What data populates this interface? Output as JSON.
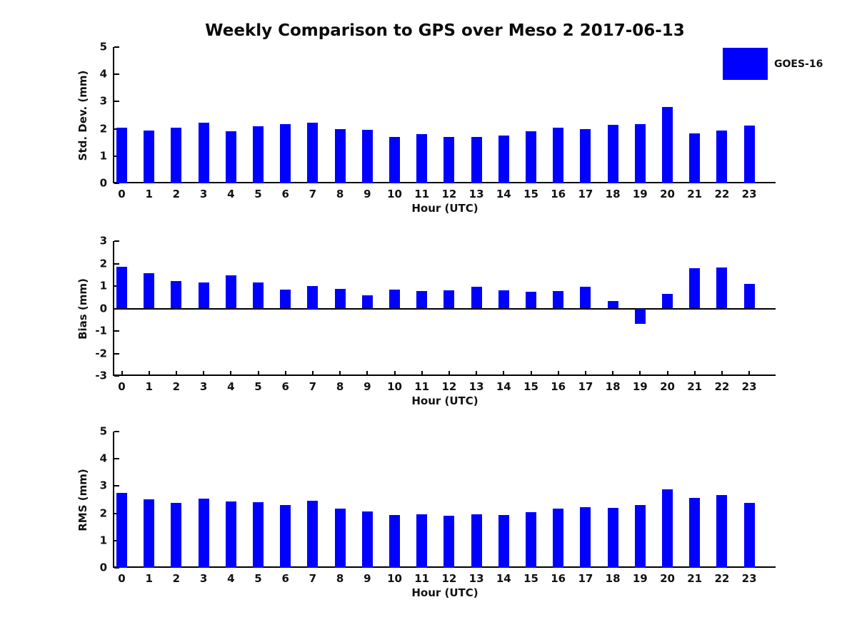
{
  "figure": {
    "title": "Weekly Comparison to GPS over Meso 2 2017-06-13",
    "legend": {
      "label": "GOES-16",
      "color": "#0000ff",
      "position": "upper right"
    },
    "background_color": "#ffffff",
    "axis_color": "#000000",
    "text_color": "#111111"
  },
  "chart_data": [
    {
      "type": "bar",
      "title": "",
      "ylabel": "Std. Dev. (mm)",
      "xlabel": "Hour (UTC)",
      "ylim": [
        0,
        5
      ],
      "yticks": [
        0,
        1,
        2,
        3,
        4,
        5
      ],
      "grid": false,
      "categories": [
        "0",
        "1",
        "2",
        "3",
        "4",
        "5",
        "6",
        "7",
        "8",
        "9",
        "10",
        "11",
        "12",
        "13",
        "14",
        "15",
        "16",
        "17",
        "18",
        "19",
        "20",
        "21",
        "22",
        "23"
      ],
      "series": [
        {
          "name": "GOES-16",
          "color": "#0000ff",
          "values": [
            2.05,
            1.93,
            2.03,
            2.23,
            1.91,
            2.1,
            2.16,
            2.23,
            2.0,
            1.97,
            1.71,
            1.8,
            1.71,
            1.71,
            1.76,
            1.9,
            2.04,
            1.99,
            2.15,
            2.18,
            2.81,
            1.83,
            1.94,
            2.13
          ]
        }
      ]
    },
    {
      "type": "bar",
      "title": "",
      "ylabel": "Bias (mm)",
      "xlabel": "Hour (UTC)",
      "ylim": [
        -3,
        3
      ],
      "yticks": [
        -3,
        -2,
        -1,
        0,
        1,
        2,
        3
      ],
      "grid": false,
      "categories": [
        "0",
        "1",
        "2",
        "3",
        "4",
        "5",
        "6",
        "7",
        "8",
        "9",
        "10",
        "11",
        "12",
        "13",
        "14",
        "15",
        "16",
        "17",
        "18",
        "19",
        "20",
        "21",
        "22",
        "23"
      ],
      "series": [
        {
          "name": "GOES-16",
          "color": "#0000ff",
          "values": [
            1.85,
            1.58,
            1.23,
            1.17,
            1.48,
            1.17,
            0.83,
            1.0,
            0.88,
            0.58,
            0.83,
            0.77,
            0.8,
            0.97,
            0.82,
            0.76,
            0.78,
            0.97,
            0.32,
            -0.68,
            0.65,
            1.8,
            1.83,
            1.1
          ]
        }
      ]
    },
    {
      "type": "bar",
      "title": "",
      "ylabel": "RMS (mm)",
      "xlabel": "Hour (UTC)",
      "ylim": [
        0,
        5
      ],
      "yticks": [
        0,
        1,
        2,
        3,
        4,
        5
      ],
      "grid": false,
      "categories": [
        "0",
        "1",
        "2",
        "3",
        "4",
        "5",
        "6",
        "7",
        "8",
        "9",
        "10",
        "11",
        "12",
        "13",
        "14",
        "15",
        "16",
        "17",
        "18",
        "19",
        "20",
        "21",
        "22",
        "23"
      ],
      "series": [
        {
          "name": "GOES-16",
          "color": "#0000ff",
          "values": [
            2.75,
            2.52,
            2.37,
            2.54,
            2.44,
            2.42,
            2.31,
            2.47,
            2.18,
            2.06,
            1.93,
            1.97,
            1.9,
            1.97,
            1.94,
            2.03,
            2.16,
            2.22,
            2.19,
            2.3,
            2.89,
            2.56,
            2.66,
            2.37
          ]
        }
      ]
    }
  ]
}
